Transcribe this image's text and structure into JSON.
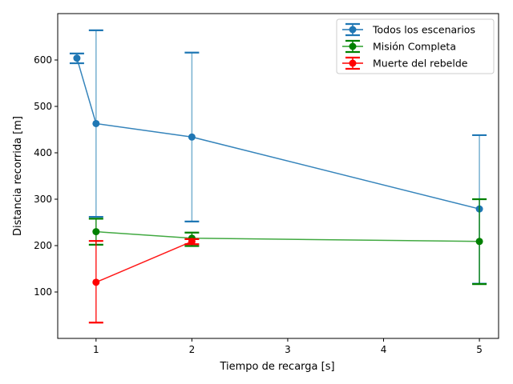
{
  "chart_data": {
    "type": "line",
    "title": "",
    "xlabel": "Tiempo de recarga [s]",
    "ylabel": "Distancia recorrida [m]",
    "xlim": [
      0.6,
      5.2
    ],
    "ylim": [
      0,
      700
    ],
    "xticks": [
      1,
      2,
      3,
      4,
      5
    ],
    "yticks": [
      100,
      200,
      300,
      400,
      500,
      600
    ],
    "legend_position": "top-right",
    "series": [
      {
        "name": "Todos los escenarios",
        "color": "#1f77b4",
        "errcolor": "#1f77b4",
        "errbar_stroke": "#5fa2c8",
        "points": [
          {
            "x": 0.8,
            "y": 604,
            "ylow": 593,
            "yhigh": 614
          },
          {
            "x": 1,
            "y": 463,
            "ylow": 262,
            "yhigh": 664
          },
          {
            "x": 2,
            "y": 434,
            "ylow": 252,
            "yhigh": 616
          },
          {
            "x": 5,
            "y": 279,
            "ylow": 118,
            "yhigh": 438
          }
        ]
      },
      {
        "name": "Misión Completa",
        "color": "#2ca02c",
        "errcolor": "#008000",
        "errbar_stroke": "#008000",
        "points": [
          {
            "x": 1,
            "y": 230,
            "ylow": 202,
            "yhigh": 258
          },
          {
            "x": 2,
            "y": 216,
            "ylow": 199,
            "yhigh": 228
          },
          {
            "x": 5,
            "y": 209,
            "ylow": 117,
            "yhigh": 300
          }
        ]
      },
      {
        "name": "Muerte del rebelde",
        "color": "#ff0000",
        "errcolor": "#ff0000",
        "errbar_stroke": "#ff0000",
        "points": [
          {
            "x": 1,
            "y": 121,
            "ylow": 34,
            "yhigh": 210
          },
          {
            "x": 2,
            "y": 209,
            "ylow": 203,
            "yhigh": 214
          }
        ]
      }
    ]
  }
}
